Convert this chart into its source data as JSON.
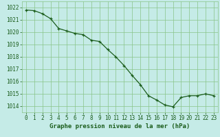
{
  "x": [
    0,
    1,
    2,
    3,
    4,
    5,
    6,
    7,
    8,
    9,
    10,
    11,
    12,
    13,
    14,
    15,
    16,
    17,
    18,
    19,
    20,
    21,
    22,
    23
  ],
  "y": [
    1021.8,
    1021.75,
    1021.5,
    1021.1,
    1020.3,
    1020.1,
    1019.9,
    1019.8,
    1019.35,
    1019.25,
    1018.6,
    1018.0,
    1017.3,
    1016.5,
    1015.75,
    1014.85,
    1014.5,
    1014.1,
    1013.95,
    1014.7,
    1014.85,
    1014.85,
    1015.0,
    1014.85
  ],
  "line_color": "#1a5c1a",
  "marker": "+",
  "marker_size": 3.5,
  "line_width": 0.9,
  "bg_color": "#c5ebe7",
  "grid_color": "#88c488",
  "xlabel": "Graphe pression niveau de la mer (hPa)",
  "xlabel_fontsize": 6.5,
  "xlabel_color": "#1a5c1a",
  "tick_color": "#1a5c1a",
  "tick_fontsize": 5.5,
  "ylim": [
    1013.5,
    1022.5
  ],
  "xlim": [
    -0.5,
    23.5
  ],
  "yticks": [
    1014,
    1015,
    1016,
    1017,
    1018,
    1019,
    1020,
    1021,
    1022
  ],
  "xticks": [
    0,
    1,
    2,
    3,
    4,
    5,
    6,
    7,
    8,
    9,
    10,
    11,
    12,
    13,
    14,
    15,
    16,
    17,
    18,
    19,
    20,
    21,
    22,
    23
  ]
}
